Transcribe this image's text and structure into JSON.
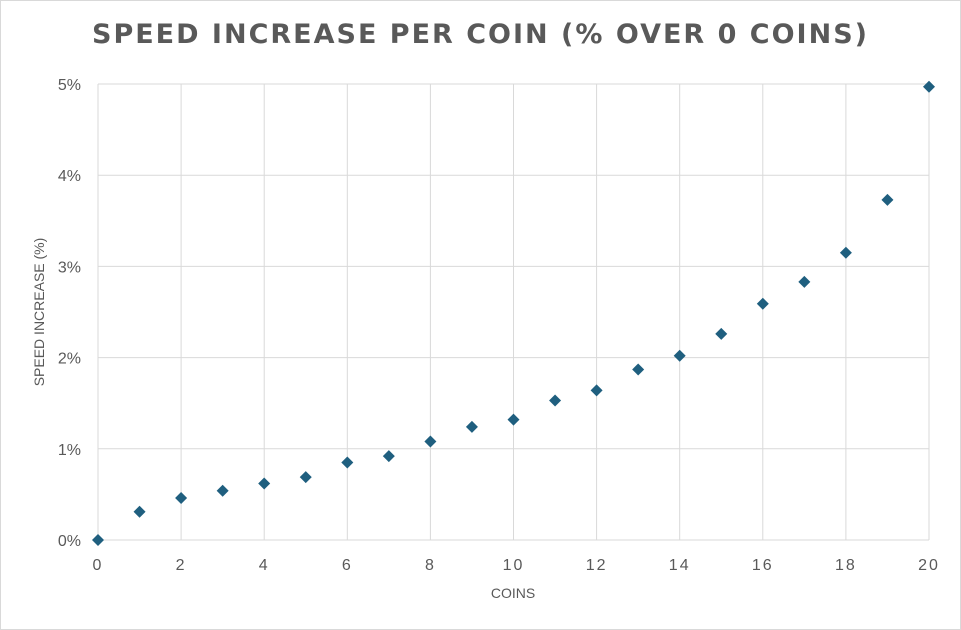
{
  "chart_data": {
    "type": "scatter",
    "title": "SPEED INCREASE PER COIN (% OVER 0 COINS)",
    "xlabel": "COINS",
    "ylabel": "SPEED INCREASE (%)",
    "xlim": [
      0,
      20
    ],
    "ylim": [
      0,
      5
    ],
    "x_ticks": [
      "0",
      "2",
      "4",
      "6",
      "8",
      "10",
      "12",
      "14",
      "16",
      "18",
      "20"
    ],
    "y_ticks": [
      "0%",
      "1%",
      "2%",
      "3%",
      "4%",
      "5%"
    ],
    "grid": true,
    "marker": "diamond",
    "series": [
      {
        "color": "#1f5f7f",
        "x": [
          0,
          1,
          2,
          3,
          4,
          5,
          6,
          7,
          8,
          9,
          10,
          11,
          12,
          13,
          14,
          15,
          16,
          17,
          18,
          19,
          20
        ],
        "y": [
          0,
          0.31,
          0.46,
          0.54,
          0.62,
          0.69,
          0.85,
          0.92,
          1.08,
          1.24,
          1.32,
          1.53,
          1.64,
          1.87,
          2.02,
          2.26,
          2.59,
          2.83,
          3.15,
          3.73,
          4.97
        ]
      }
    ]
  }
}
